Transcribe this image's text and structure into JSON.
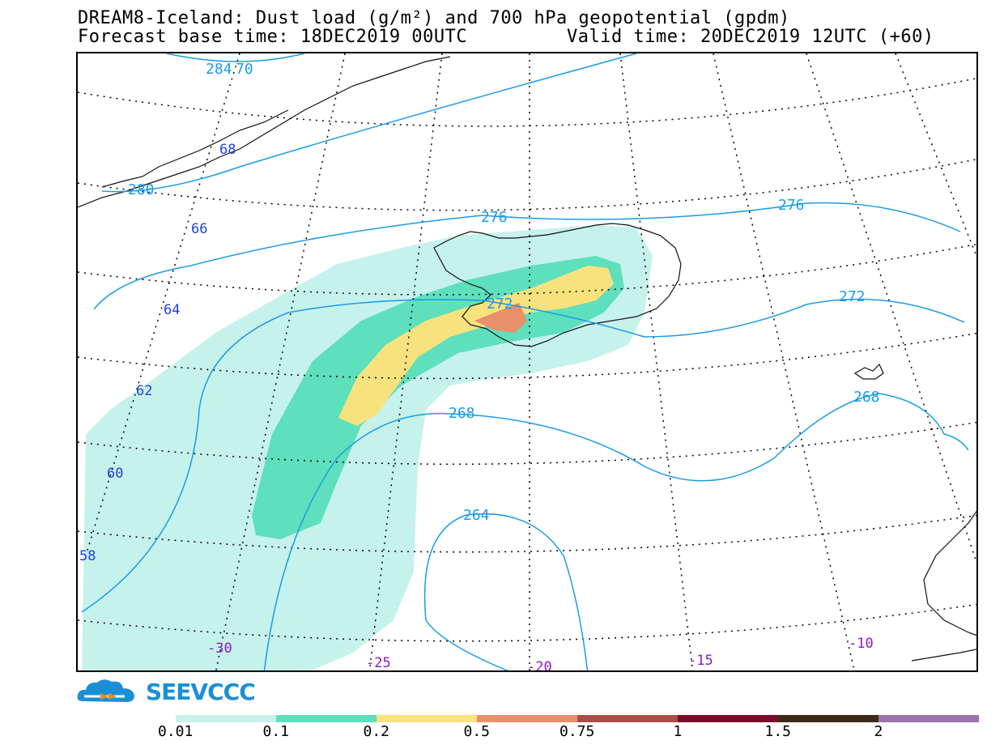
{
  "header": {
    "title_line1": "DREAM8-Iceland: Dust load (g/m²) and 700 hPa geopotential (gpdm)",
    "title_line2a": "Forecast base time: 18DEC2019 00UTC",
    "title_line2b": "Valid time: 20DEC2019 12UTC (+60)"
  },
  "map": {
    "contour_labels": [
      "284",
      "70",
      "280",
      "276",
      "276",
      "272",
      "272",
      "268",
      "268",
      "264"
    ],
    "latitude_labels": [
      "68",
      "66",
      "64",
      "62",
      "60",
      "58"
    ],
    "longitude_labels": [
      "-30",
      "-25",
      "-20",
      "-15",
      "-10"
    ],
    "colors": {
      "contour": "#1a9be8",
      "lat_label": "#1f3fe0",
      "lon_label": "#8a18c8"
    }
  },
  "logo": {
    "text": "SEEVCCC"
  },
  "legend": {
    "labels": [
      "0.01",
      "0.1",
      "0.2",
      "0.5",
      "0.75",
      "1",
      "1.5",
      "2"
    ],
    "colors": [
      "#c6f2ec",
      "#5ee0bc",
      "#f7e27d",
      "#e8906a",
      "#a84e4a",
      "#7a0c2a",
      "#3d2a16",
      "#9a74aa"
    ]
  }
}
